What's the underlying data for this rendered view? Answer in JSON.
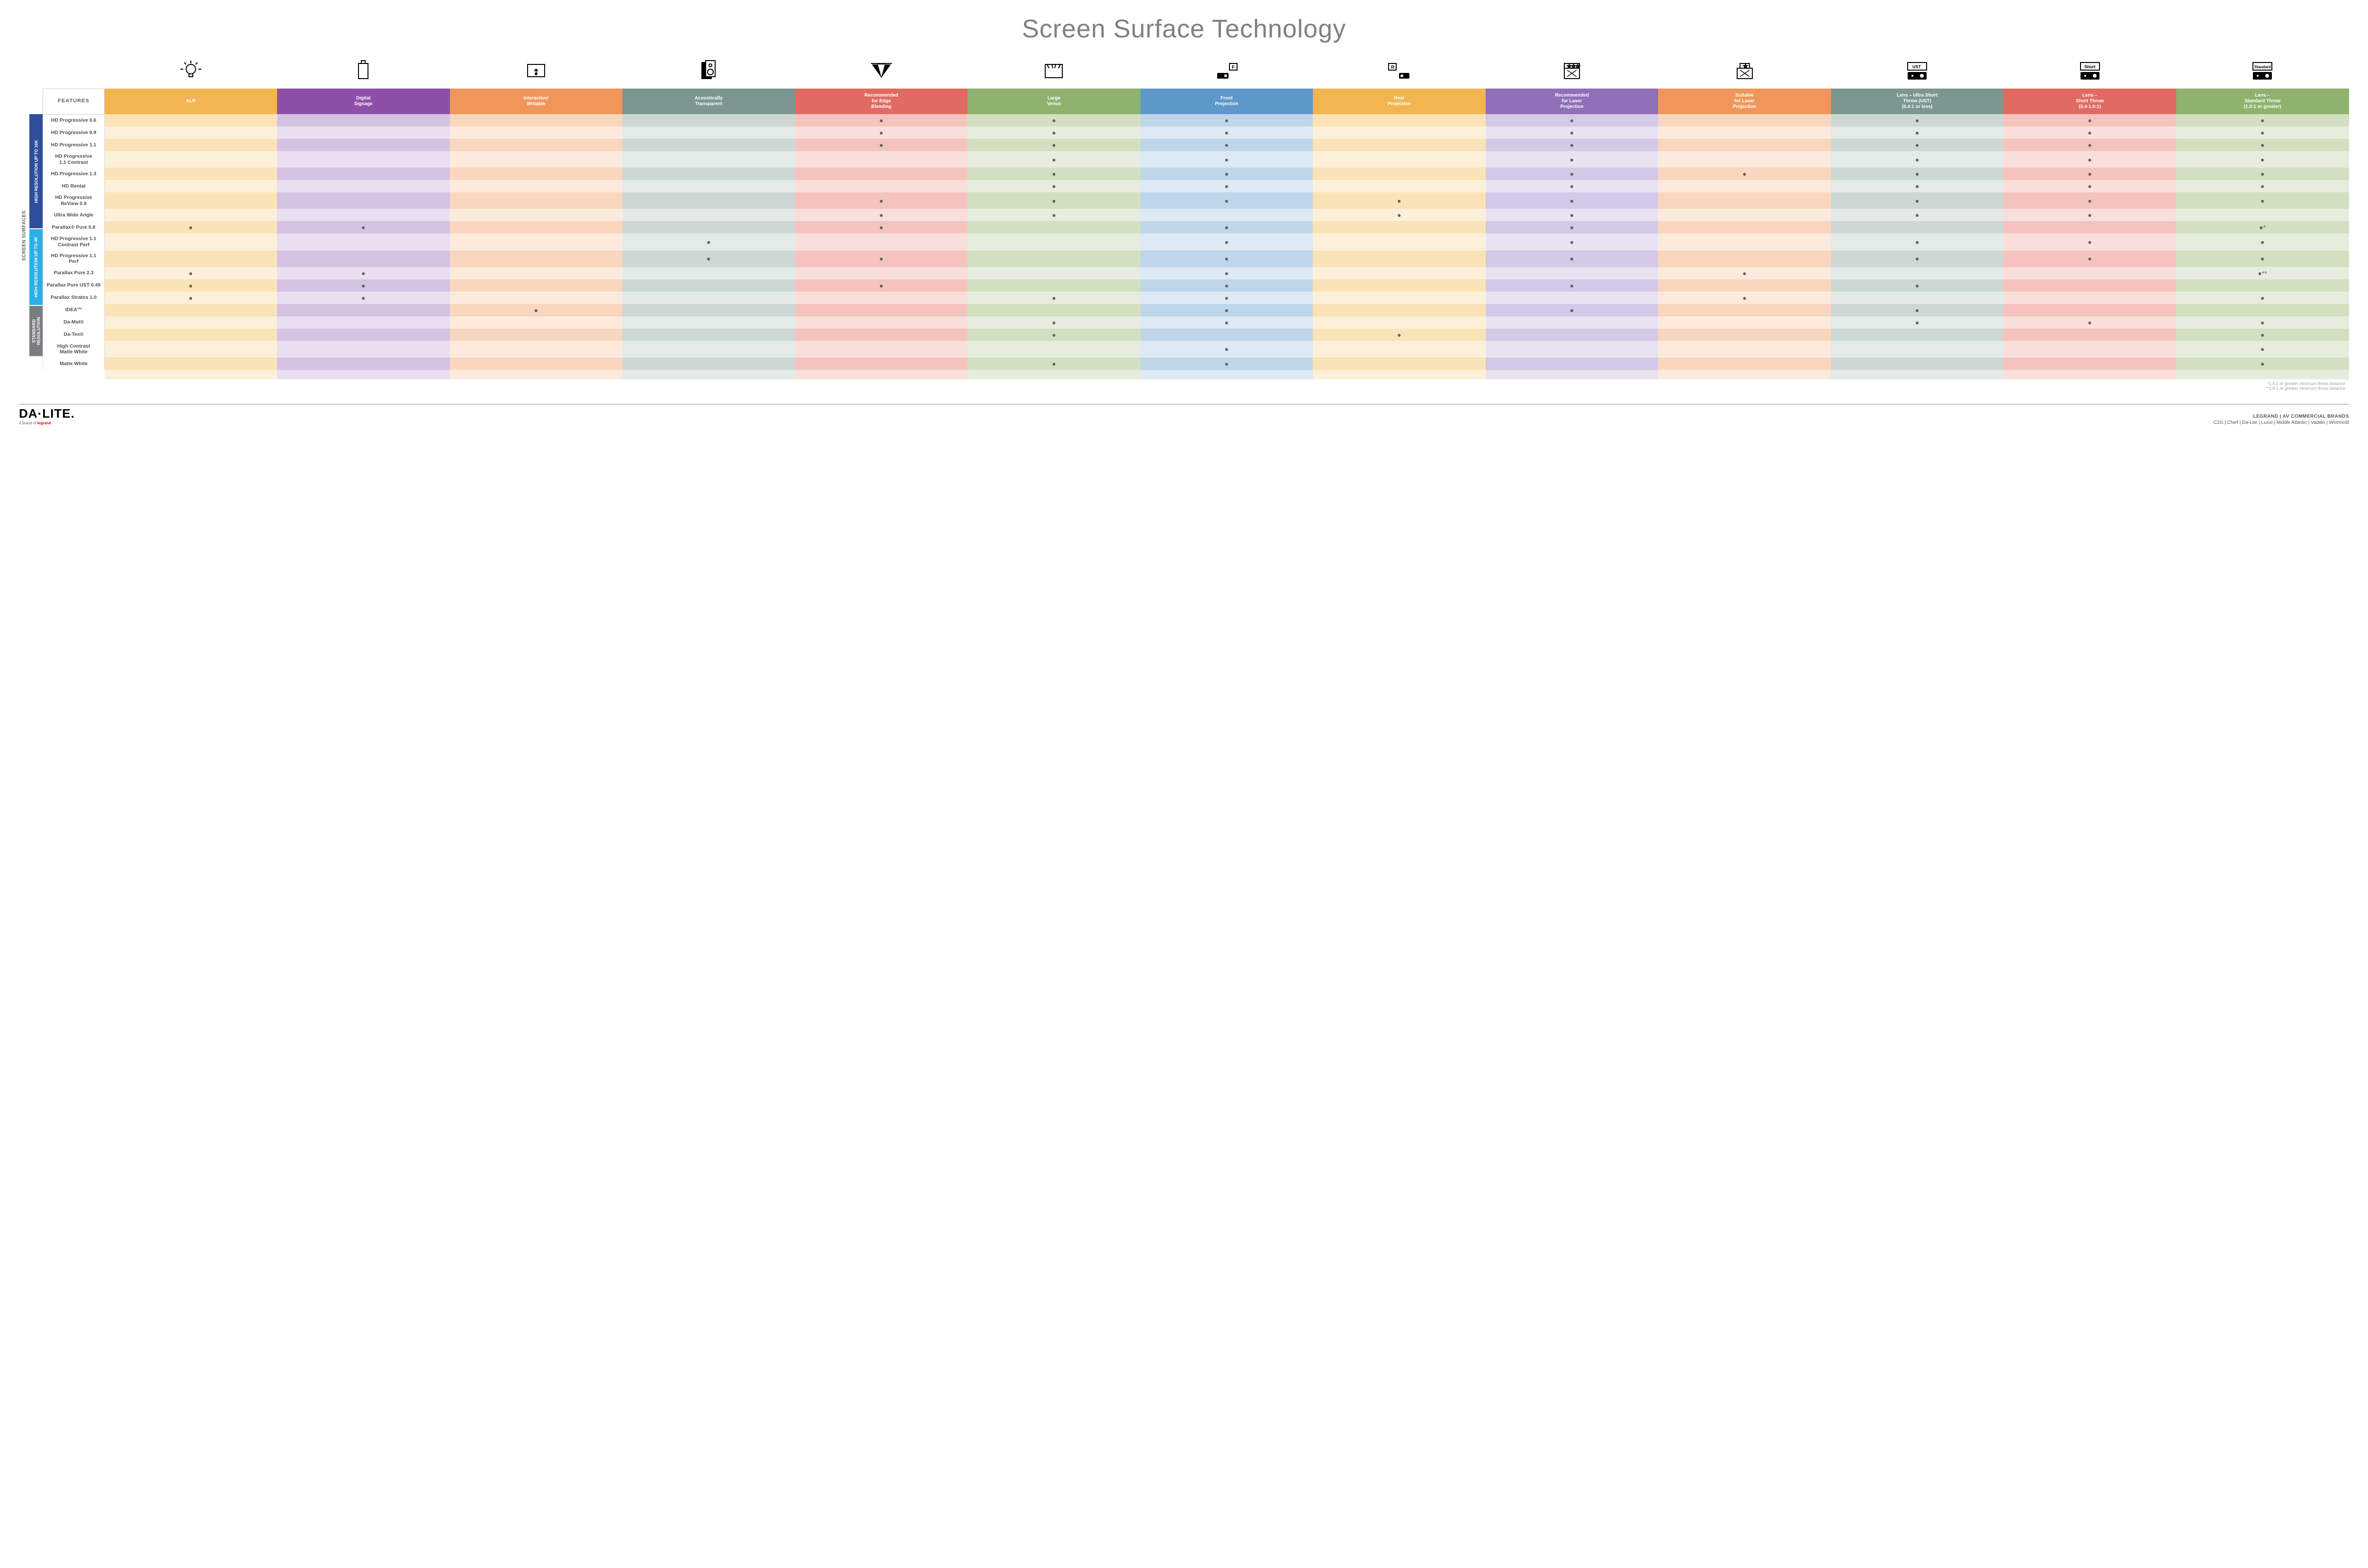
{
  "title": "Screen Surface Technology",
  "features_label": "FEATURES",
  "side_label": "SCREEN SURFACES",
  "colors": {
    "header": [
      "#f2b552",
      "#8e4fa8",
      "#f0965a",
      "#7d9690",
      "#e16a62",
      "#8fb26f",
      "#5e97c9",
      "#f2b552",
      "#8e6fb8",
      "#f0965a",
      "#7d9690",
      "#e16a62",
      "#8fb26f"
    ],
    "light": [
      "#fbe3b8",
      "#d5c3e2",
      "#f9d6be",
      "#cdd7d3",
      "#f4c3be",
      "#d3e0c0",
      "#bfd5e9",
      "#fbe3b8",
      "#d4c9e6",
      "#f9d6be",
      "#cdd7d3",
      "#f4c3be",
      "#d3e0c0"
    ],
    "pale": [
      "#fdf0da",
      "#e9dff0",
      "#fceadd",
      "#e4eae7",
      "#f9dfdc",
      "#e7edde",
      "#dde9f3",
      "#fdf0da",
      "#e8e2f1",
      "#fceadd",
      "#e4eae7",
      "#f9dfdc",
      "#e7edde"
    ],
    "group_bg": [
      "#2e4f9e",
      "#2bb0e6",
      "#7a7d80"
    ]
  },
  "columns": [
    {
      "label": "ALR",
      "icon": "bulb"
    },
    {
      "label": "Digital\nSignage",
      "icon": "signage"
    },
    {
      "label": "Interactive/\nWritable",
      "icon": "touch"
    },
    {
      "label": "Acoustically\nTransparent",
      "icon": "speaker"
    },
    {
      "label": "Recommended\nfor Edge\nBlending",
      "icon": "blend"
    },
    {
      "label": "Large\nVenue",
      "icon": "venue"
    },
    {
      "label": "Front\nProjection",
      "icon": "front"
    },
    {
      "label": "Rear\nProjection",
      "icon": "rear"
    },
    {
      "label": "Recommended\nfor Laser\nProjection",
      "icon": "laser3"
    },
    {
      "label": "Suitable\nfor Laser\nProjection",
      "icon": "laser1"
    },
    {
      "label": "Lens – Ultra Short\nThrow (UST)\n(0.4:1 or less)",
      "icon": "ust"
    },
    {
      "label": "Lens –\nShort Throw\n(0.4-1.0:1)",
      "icon": "short"
    },
    {
      "label": "Lens –\nStandard Throw\n(1.0:1 or greater)",
      "icon": "std"
    }
  ],
  "groups": [
    {
      "label": "HIGH RESOLUTION UP TO 16K",
      "rows": 9
    },
    {
      "label": "HIGH RESOLUTION UP TO 4K",
      "rows": 6
    },
    {
      "label": "STANDARD\nRESOLUTION",
      "rows": 4
    }
  ],
  "rows": [
    {
      "label": "HD Progressive 0.6",
      "d": [
        "",
        "",
        "",
        "",
        "●",
        "●",
        "●",
        "",
        "●",
        "",
        "●",
        "●",
        "●"
      ]
    },
    {
      "label": "HD Progressive 0.9",
      "d": [
        "",
        "",
        "",
        "",
        "●",
        "●",
        "●",
        "",
        "●",
        "",
        "●",
        "●",
        "●"
      ]
    },
    {
      "label": "HD Progressive 1.1",
      "d": [
        "",
        "",
        "",
        "",
        "●",
        "●",
        "●",
        "",
        "●",
        "",
        "●",
        "●",
        "●"
      ]
    },
    {
      "label": "HD Progressive\n1.1 Contrast",
      "d": [
        "",
        "",
        "",
        "",
        "",
        "●",
        "●",
        "",
        "●",
        "",
        "●",
        "●",
        "●"
      ]
    },
    {
      "label": "HD Progressive 1.3",
      "d": [
        "",
        "",
        "",
        "",
        "",
        "●",
        "●",
        "",
        "●",
        "●",
        "●",
        "●",
        "●"
      ]
    },
    {
      "label": "HD Rental",
      "d": [
        "",
        "",
        "",
        "",
        "",
        "●",
        "●",
        "",
        "●",
        "",
        "●",
        "●",
        "●"
      ]
    },
    {
      "label": "HD Progressive ReView 0.9",
      "d": [
        "",
        "",
        "",
        "",
        "●",
        "●",
        "●",
        "●",
        "●",
        "",
        "●",
        "●",
        "●"
      ]
    },
    {
      "label": "Ultra Wide Angle",
      "d": [
        "",
        "",
        "",
        "",
        "●",
        "●",
        "",
        "●",
        "●",
        "",
        "●",
        "●",
        ""
      ]
    },
    {
      "label": "Parallax® Pure 0.8",
      "d": [
        "●",
        "●",
        "",
        "",
        "●",
        "",
        "●",
        "",
        "●",
        "",
        "",
        "",
        "●*"
      ]
    },
    {
      "label": "HD Progressive 1.1\nContrast Perf",
      "d": [
        "",
        "",
        "",
        "●",
        "",
        "",
        "●",
        "",
        "●",
        "",
        "●",
        "●",
        "●"
      ]
    },
    {
      "label": "HD Progressive 1.1 Perf",
      "d": [
        "",
        "",
        "",
        "●",
        "●",
        "",
        "●",
        "",
        "●",
        "",
        "●",
        "●",
        "●"
      ]
    },
    {
      "label": "Parallax Pure 2.3",
      "d": [
        "●",
        "●",
        "",
        "",
        "",
        "",
        "●",
        "",
        "",
        "●",
        "",
        "",
        "●**"
      ]
    },
    {
      "label": "Parallax Pure UST 0.45",
      "d": [
        "●",
        "●",
        "",
        "",
        "●",
        "",
        "●",
        "",
        "●",
        "",
        "●",
        "",
        ""
      ]
    },
    {
      "label": "Parallax Stratos 1.0",
      "d": [
        "●",
        "●",
        "",
        "",
        "",
        "●",
        "●",
        "",
        "",
        "●",
        "",
        "",
        "●"
      ]
    },
    {
      "label": "IDEA™",
      "d": [
        "",
        "",
        "●",
        "",
        "",
        "",
        "●",
        "",
        "●",
        "",
        "●",
        "",
        ""
      ]
    },
    {
      "label": "Da-Mat®",
      "d": [
        "",
        "",
        "",
        "",
        "",
        "●",
        "●",
        "",
        "",
        "",
        "●",
        "●",
        "●"
      ]
    },
    {
      "label": "Da-Tex®",
      "d": [
        "",
        "",
        "",
        "",
        "",
        "●",
        "",
        "●",
        "",
        "",
        "",
        "",
        "●"
      ]
    },
    {
      "label": "High Contrast\nMatte White",
      "d": [
        "",
        "",
        "",
        "",
        "",
        "",
        "●",
        "",
        "",
        "",
        "",
        "",
        "●"
      ]
    },
    {
      "label": "Matte White",
      "d": [
        "",
        "",
        "",
        "",
        "",
        "●",
        "●",
        "",
        "",
        "",
        "",
        "",
        "●"
      ]
    }
  ],
  "footnotes": [
    "*1.5:1 or greater minimum throw distance",
    "**1.8:1 or greater minimum throw distance"
  ],
  "footer": {
    "logo": "DA·LITE.",
    "logo_sub_prefix": "A brand of ",
    "logo_sub_brand": "legrand",
    "right_line1": "LEGRAND | AV COMMERCIAL BRANDS",
    "right_line2": "C2G  |  Chief  |  Da-Lite  |  Luxul  |  Middle Atlantic  |  Vaddio  |  Wiremold"
  },
  "icons": {
    "bulb": "<g stroke='#000' stroke-width='2' fill='none'><circle cx='24' cy='20' r='10'/><path d='M20 30v6h8v-6'/><line x1='24' y1='2' x2='24' y2='8'/><line x1='8' y1='20' x2='2' y2='20'/><line x1='46' y1='20' x2='40' y2='20'/><line x1='10' y1='6' x2='14' y2='10'/><line x1='38' y1='6' x2='34' y2='10'/></g>",
    "signage": "<g stroke='#000' stroke-width='2' fill='none'><rect x='14' y='8' width='20' height='32'/><rect x='20' y='2' width='8' height='6'/></g>",
    "touch": "<g stroke='#000' stroke-width='2' fill='none'><rect x='6' y='10' width='36' height='26'/><path d='M24 28 l0-8 m-4 4 l4-4 l4 4'/><circle cx='24' cy='30' r='2' fill='#000'/></g>",
    "speaker": "<g stroke='#000' stroke-width='2' fill='none'><rect x='10' y='6' width='20' height='34' fill='#000'/><rect x='18' y='2' width='20' height='34' fill='#fff'/><circle cx='28' cy='12' r='3'/><circle cx='28' cy='26' r='6'/></g>",
    "blend": "<g fill='#000'><path d='M4 10 L24 38 L16 10 Z'/><path d='M16 10 L24 38 L32 10 Z' fill='#fff' stroke='#000' stroke-width='1'/><path d='M32 10 L24 38 L44 10 Z'/></g><line x1='2' y1='8' x2='46' y2='8' stroke='#000' stroke-width='2'/>",
    "venue": "<g stroke='#000' stroke-width='2' fill='none'><rect x='6' y='10' width='36' height='28' fill='#fff'/><path d='M6 10 L42 10 M10 10 L14 18 M20 10 L22 18 M28 10 L26 18 M38 10 L34 18' /></g>",
    "front": "<g fill='#000'><rect x='4' y='28' width='24' height='12' rx='2'/><circle cx='22' cy='34' r='3' fill='#fff'/><rect x='30' y='8' width='16' height='14' fill='none' stroke='#000' stroke-width='2'/><text x='35' y='19' font-size='10' font-weight='bold'>F</text></g>",
    "rear": "<g fill='#000'><rect x='24' y='28' width='22' height='12' rx='2'/><circle cx='30' cy='34' r='3' fill='#fff'/><rect x='2' y='8' width='16' height='14' fill='none' stroke='#000' stroke-width='2'/><text x='7' y='19' font-size='10' font-weight='bold'>R</text></g>",
    "laser3": "<g stroke='#000' stroke-width='2' fill='none'><rect x='8' y='18' width='32' height='22'/><rect x='8' y='8' width='32' height='10'/><text x='14' y='17' font-size='10'>★★★</text><path d='M14 36 L34 22 M14 22 L34 36' stroke-width='1.5'/></g>",
    "laser1": "<g stroke='#000' stroke-width='2' fill='none'><rect x='8' y='18' width='32' height='22'/><rect x='14' y='8' width='20' height='10'/><text x='21' y='17' font-size='10'>★</text><path d='M14 36 L34 22 M14 22 L34 36' stroke-width='1.5'/></g>",
    "ust": "<g fill='#000'><rect x='4' y='26' width='40' height='16' rx='2'/><circle cx='34' cy='34' r='4' fill='#fff'/><circle cx='14' cy='34' r='2' fill='#fff'/><rect x='4' y='6' width='40' height='16' fill='#fff' stroke='#000' stroke-width='2'/><text x='14' y='18' font-size='9' font-weight='bold'>UST</text></g>",
    "short": "<g fill='#000'><rect x='4' y='26' width='40' height='16' rx='2'/><circle cx='34' cy='34' r='4' fill='#fff'/><circle cx='14' cy='34' r='2' fill='#fff'/><rect x='4' y='6' width='40' height='16' fill='#fff' stroke='#000' stroke-width='2'/><text x='12' y='18' font-size='9' font-weight='bold'>Short</text></g>",
    "std": "<g fill='#000'><rect x='4' y='26' width='40' height='16' rx='2'/><circle cx='34' cy='34' r='4' fill='#fff'/><circle cx='14' cy='34' r='2' fill='#fff'/><rect x='4' y='6' width='40' height='16' fill='#fff' stroke='#000' stroke-width='2'/><text x='7' y='18' font-size='8' font-weight='bold'>Standard</text></g>"
  }
}
